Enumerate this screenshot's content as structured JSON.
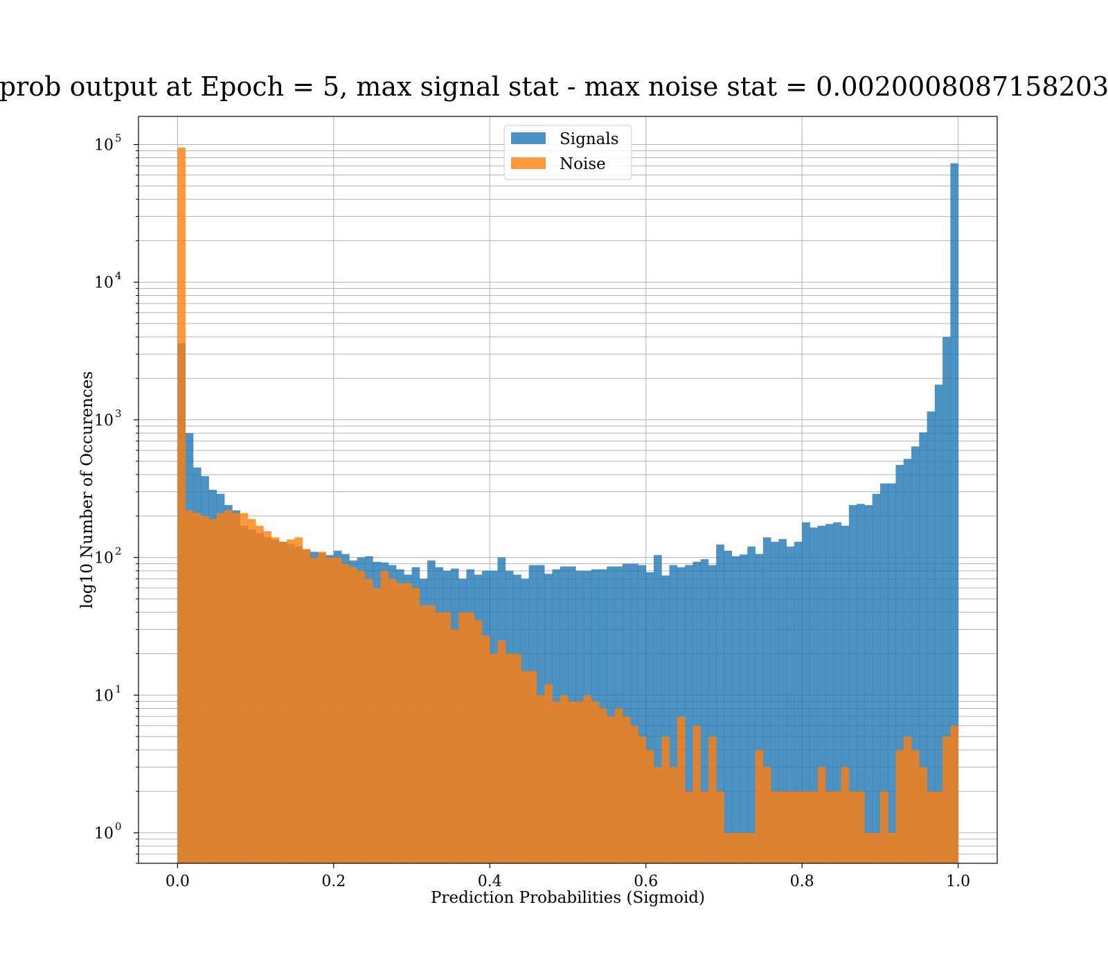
{
  "chart_data": {
    "type": "bar",
    "title": "prob output at Epoch = 5, max signal stat - max noise stat = 0.0020008087158203",
    "xlabel": "Prediction Probabilities (Sigmoid)",
    "ylabel": "log10 Number of Occurences",
    "xlim": [
      -0.05,
      1.05
    ],
    "ylim": [
      0.6,
      160000
    ],
    "yscale": "log",
    "grid": true,
    "legend_position": "upper center",
    "x_ticks": [
      "0.0",
      "0.2",
      "0.4",
      "0.6",
      "0.8",
      "1.0"
    ],
    "y_ticks": [
      {
        "base": "10",
        "exp": "0",
        "value": 1
      },
      {
        "base": "10",
        "exp": "1",
        "value": 10
      },
      {
        "base": "10",
        "exp": "2",
        "value": 100
      },
      {
        "base": "10",
        "exp": "3",
        "value": 1000
      },
      {
        "base": "10",
        "exp": "4",
        "value": 10000
      },
      {
        "base": "10",
        "exp": "5",
        "value": 100000
      }
    ],
    "bins": {
      "start": 0.0,
      "end": 1.0,
      "count": 100
    },
    "series": [
      {
        "name": "Signals",
        "color": "#1f77b4",
        "opacity": 0.8,
        "values": [
          3600,
          800,
          450,
          390,
          310,
          290,
          240,
          220,
          170,
          160,
          150,
          140,
          135,
          130,
          125,
          120,
          115,
          110,
          108,
          104,
          112,
          106,
          95,
          100,
          102,
          93,
          92,
          88,
          82,
          75,
          85,
          70,
          95,
          85,
          80,
          83,
          70,
          82,
          75,
          80,
          80,
          100,
          80,
          75,
          70,
          88,
          88,
          76,
          82,
          86,
          86,
          80,
          80,
          82,
          82,
          86,
          86,
          90,
          90,
          88,
          78,
          104,
          74,
          88,
          85,
          88,
          93,
          97,
          88,
          124,
          112,
          102,
          105,
          120,
          106,
          140,
          130,
          136,
          120,
          130,
          180,
          165,
          170,
          175,
          180,
          170,
          240,
          245,
          240,
          290,
          345,
          345,
          470,
          520,
          640,
          810,
          1150,
          1800,
          4000,
          73000
        ]
      },
      {
        "name": "Noise",
        "color": "#ff7f0e",
        "opacity": 0.8,
        "values": [
          95000,
          220,
          210,
          200,
          190,
          210,
          220,
          210,
          210,
          190,
          170,
          155,
          140,
          130,
          135,
          140,
          115,
          100,
          110,
          100,
          100,
          90,
          85,
          80,
          70,
          60,
          80,
          70,
          65,
          65,
          60,
          45,
          45,
          40,
          40,
          30,
          40,
          40,
          35,
          27,
          20,
          25,
          20,
          20,
          15,
          15,
          10,
          12,
          9,
          10,
          9,
          9,
          10,
          9,
          8,
          7,
          8,
          7,
          6,
          5,
          4,
          3,
          5,
          3,
          7,
          2,
          6,
          2,
          5,
          2,
          1,
          1,
          1,
          1,
          4,
          3,
          2,
          2,
          2,
          2,
          2,
          2,
          3,
          2,
          2,
          3,
          2,
          2,
          1,
          1,
          2,
          1,
          4,
          5,
          4,
          3,
          2,
          2,
          5,
          6
        ]
      }
    ]
  }
}
